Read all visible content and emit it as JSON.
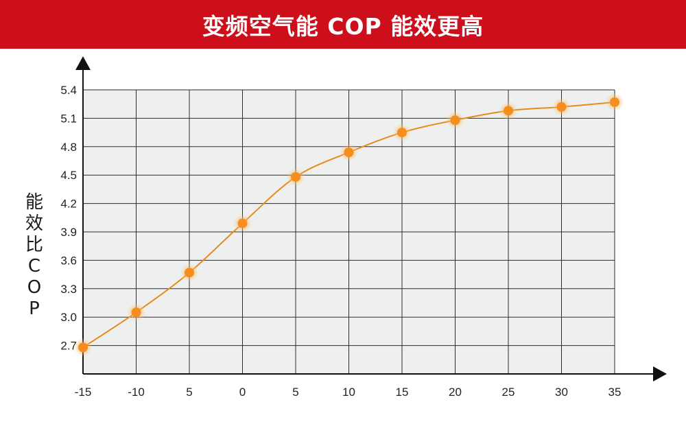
{
  "banner": {
    "title": "变频空气能  COP 能效更高"
  },
  "colors": {
    "banner": "#cc0f1a",
    "line": "#e88a1a",
    "point": "#f58d1f",
    "plot_bg": "#eef0ef",
    "grid": "#2a2a2a"
  },
  "chart_data": {
    "type": "line",
    "title": "变频空气能  COP 能效更高",
    "ylabel_chars": [
      "能",
      "效",
      "比",
      "C",
      "O",
      "P"
    ],
    "xlabel": "",
    "categories": [
      "-15",
      "-10",
      "5",
      "0",
      "5",
      "10",
      "15",
      "20",
      "25",
      "30",
      "35"
    ],
    "y_ticks": [
      "2.7",
      "3.0",
      "3.3",
      "3.6",
      "3.9",
      "4.2",
      "4.5",
      "4.8",
      "5.1",
      "5.4"
    ],
    "ylim": [
      2.4,
      5.4
    ],
    "values": [
      2.68,
      3.05,
      3.47,
      3.99,
      4.48,
      4.74,
      4.95,
      5.08,
      5.18,
      5.22,
      5.27
    ],
    "grid": true,
    "legend": "none"
  }
}
